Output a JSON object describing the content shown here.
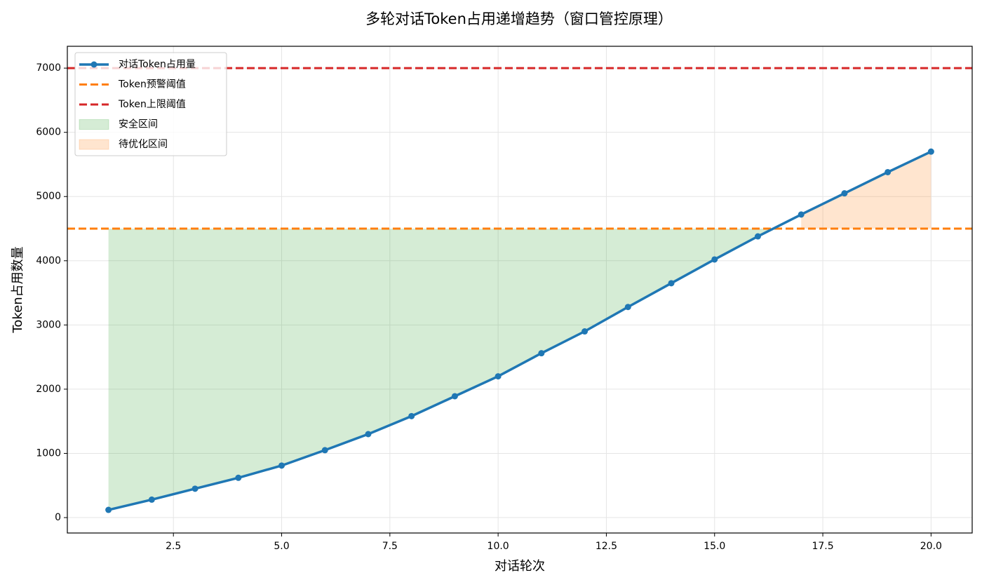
{
  "chart_data": {
    "type": "line",
    "title": "多轮对话Token占用递增趋势（窗口管控原理）",
    "xlabel": "对话轮次",
    "ylabel": "Token占用数量",
    "x": [
      1,
      2,
      3,
      4,
      5,
      6,
      7,
      8,
      9,
      10,
      11,
      12,
      13,
      14,
      15,
      16,
      17,
      18,
      19,
      20
    ],
    "series": [
      {
        "name": "对话Token占用量",
        "color": "#1f77b4",
        "values": [
          120,
          280,
          450,
          620,
          810,
          1050,
          1300,
          1580,
          1890,
          2200,
          2560,
          2900,
          3280,
          3650,
          4020,
          4380,
          4720,
          5050,
          5380,
          5700
        ]
      }
    ],
    "thresholds": [
      {
        "name": "Token预警阈值",
        "value": 4500,
        "color": "#ff7f0e"
      },
      {
        "name": "Token上限阈值",
        "value": 7000,
        "color": "#d62728"
      }
    ],
    "fills": [
      {
        "name": "安全区间",
        "color": "#2ca02c"
      },
      {
        "name": "待优化区间",
        "color": "#ff7f0e"
      }
    ],
    "xlim": [
      0.05,
      20.95
    ],
    "xticks": [
      2.5,
      {
        "value": 5,
        "label": "5.0"
      },
      7.5,
      {
        "value": 10,
        "label": "10.0"
      },
      12.5,
      {
        "value": 15,
        "label": "15.0"
      },
      17.5,
      {
        "value": 20,
        "label": "20.0"
      }
    ],
    "ylim": [
      -240,
      7340
    ],
    "yticks": [
      0,
      1000,
      2000,
      3000,
      4000,
      5000,
      6000,
      7000
    ],
    "grid": true,
    "legend": "upper left"
  }
}
